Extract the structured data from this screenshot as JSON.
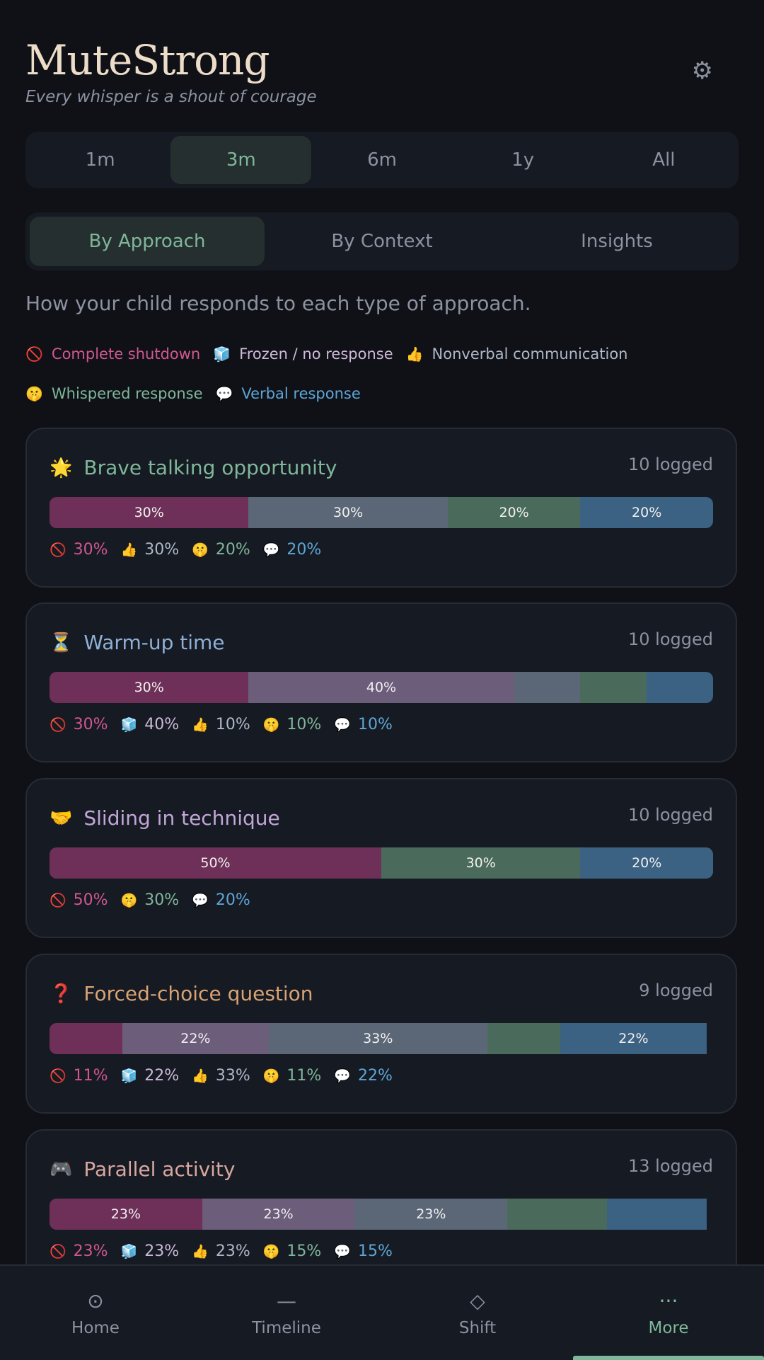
{
  "app": {
    "title": "MuteStrong",
    "tagline": "Every whisper is a shout of courage",
    "settings_icon": "gear-icon"
  },
  "range": {
    "options": [
      "1m",
      "3m",
      "6m",
      "1y",
      "All"
    ],
    "selected": "3m"
  },
  "views": {
    "options": [
      "By Approach",
      "By Context",
      "Insights"
    ],
    "selected": "By Approach"
  },
  "description": "How your child responds to each type of approach.",
  "legend": [
    {
      "icon": "🚫",
      "label": "Complete shutdown",
      "color": "#d0578f"
    },
    {
      "icon": "🧊",
      "label": "Frozen / no response",
      "color": "#cdb8d9"
    },
    {
      "icon": "👍",
      "label": "Nonverbal communication",
      "color": "#aeb8c8"
    },
    {
      "icon": "🤫",
      "label": "Whispered response",
      "color": "#7fb79a"
    },
    {
      "icon": "💬",
      "label": "Verbal response",
      "color": "#5ea6d6"
    }
  ],
  "cards": [
    {
      "icon": "🌟",
      "title": "Brave talking opportunity",
      "title_color": "#7fb79a",
      "count": "10 logged",
      "segments": [
        {
          "type": "shut",
          "pct": 30,
          "label": "30%"
        },
        {
          "type": "nonv",
          "pct": 30,
          "label": "30%"
        },
        {
          "type": "whisp",
          "pct": 20,
          "label": "20%"
        },
        {
          "type": "verbal",
          "pct": 20,
          "label": "20%"
        }
      ],
      "stats": [
        {
          "type": "shut",
          "icon": "🚫",
          "text": "30%"
        },
        {
          "type": "nonv",
          "icon": "👍",
          "text": "30%"
        },
        {
          "type": "whisp",
          "icon": "🤫",
          "text": "20%"
        },
        {
          "type": "verbal",
          "icon": "💬",
          "text": "20%"
        }
      ]
    },
    {
      "icon": "⏳",
      "title": "Warm-up time",
      "title_color": "#8fb0d6",
      "count": "10 logged",
      "segments": [
        {
          "type": "shut",
          "pct": 30,
          "label": "30%"
        },
        {
          "type": "frozen",
          "pct": 40,
          "label": "40%"
        },
        {
          "type": "nonv",
          "pct": 10,
          "label": ""
        },
        {
          "type": "whisp",
          "pct": 10,
          "label": ""
        },
        {
          "type": "verbal",
          "pct": 10,
          "label": ""
        }
      ],
      "stats": [
        {
          "type": "shut",
          "icon": "🚫",
          "text": "30%"
        },
        {
          "type": "frozen",
          "icon": "🧊",
          "text": "40%"
        },
        {
          "type": "nonv",
          "icon": "👍",
          "text": "10%"
        },
        {
          "type": "whisp",
          "icon": "🤫",
          "text": "10%"
        },
        {
          "type": "verbal",
          "icon": "💬",
          "text": "10%"
        }
      ]
    },
    {
      "icon": "🤝",
      "title": "Sliding in technique",
      "title_color": "#c2a6d8",
      "count": "10 logged",
      "segments": [
        {
          "type": "shut",
          "pct": 50,
          "label": "50%"
        },
        {
          "type": "whisp",
          "pct": 30,
          "label": "30%"
        },
        {
          "type": "verbal",
          "pct": 20,
          "label": "20%"
        }
      ],
      "stats": [
        {
          "type": "shut",
          "icon": "🚫",
          "text": "50%"
        },
        {
          "type": "whisp",
          "icon": "🤫",
          "text": "30%"
        },
        {
          "type": "verbal",
          "icon": "💬",
          "text": "20%"
        }
      ]
    },
    {
      "icon": "❓",
      "title": "Forced-choice question",
      "title_color": "#d9a373",
      "count": "9 logged",
      "segments": [
        {
          "type": "shut",
          "pct": 11,
          "label": ""
        },
        {
          "type": "frozen",
          "pct": 22,
          "label": "22%"
        },
        {
          "type": "nonv",
          "pct": 33,
          "label": "33%"
        },
        {
          "type": "whisp",
          "pct": 11,
          "label": ""
        },
        {
          "type": "verbal",
          "pct": 22,
          "label": "22%"
        }
      ],
      "stats": [
        {
          "type": "shut",
          "icon": "🚫",
          "text": "11%"
        },
        {
          "type": "frozen",
          "icon": "🧊",
          "text": "22%"
        },
        {
          "type": "nonv",
          "icon": "👍",
          "text": "33%"
        },
        {
          "type": "whisp",
          "icon": "🤫",
          "text": "11%"
        },
        {
          "type": "verbal",
          "icon": "💬",
          "text": "22%"
        }
      ]
    },
    {
      "icon": "🎮",
      "title": "Parallel activity",
      "title_color": "#d8a8a0",
      "count": "13 logged",
      "segments": [
        {
          "type": "shut",
          "pct": 23,
          "label": "23%"
        },
        {
          "type": "frozen",
          "pct": 23,
          "label": "23%"
        },
        {
          "type": "nonv",
          "pct": 23,
          "label": "23%"
        },
        {
          "type": "whisp",
          "pct": 15,
          "label": ""
        },
        {
          "type": "verbal",
          "pct": 15,
          "label": ""
        }
      ],
      "stats": [
        {
          "type": "shut",
          "icon": "🚫",
          "text": "23%"
        },
        {
          "type": "frozen",
          "icon": "🧊",
          "text": "23%"
        },
        {
          "type": "nonv",
          "icon": "👍",
          "text": "23%"
        },
        {
          "type": "whisp",
          "icon": "🤫",
          "text": "15%"
        },
        {
          "type": "verbal",
          "icon": "💬",
          "text": "15%"
        }
      ]
    }
  ],
  "nav": [
    {
      "icon": "⊙",
      "icon_name": "home-icon",
      "label": "Home"
    },
    {
      "icon": "—",
      "icon_name": "timeline-icon",
      "label": "Timeline"
    },
    {
      "icon": "◇",
      "icon_name": "shift-icon",
      "label": "Shift"
    },
    {
      "icon": "···",
      "icon_name": "more-icon",
      "label": "More"
    }
  ],
  "nav_selected": "More"
}
